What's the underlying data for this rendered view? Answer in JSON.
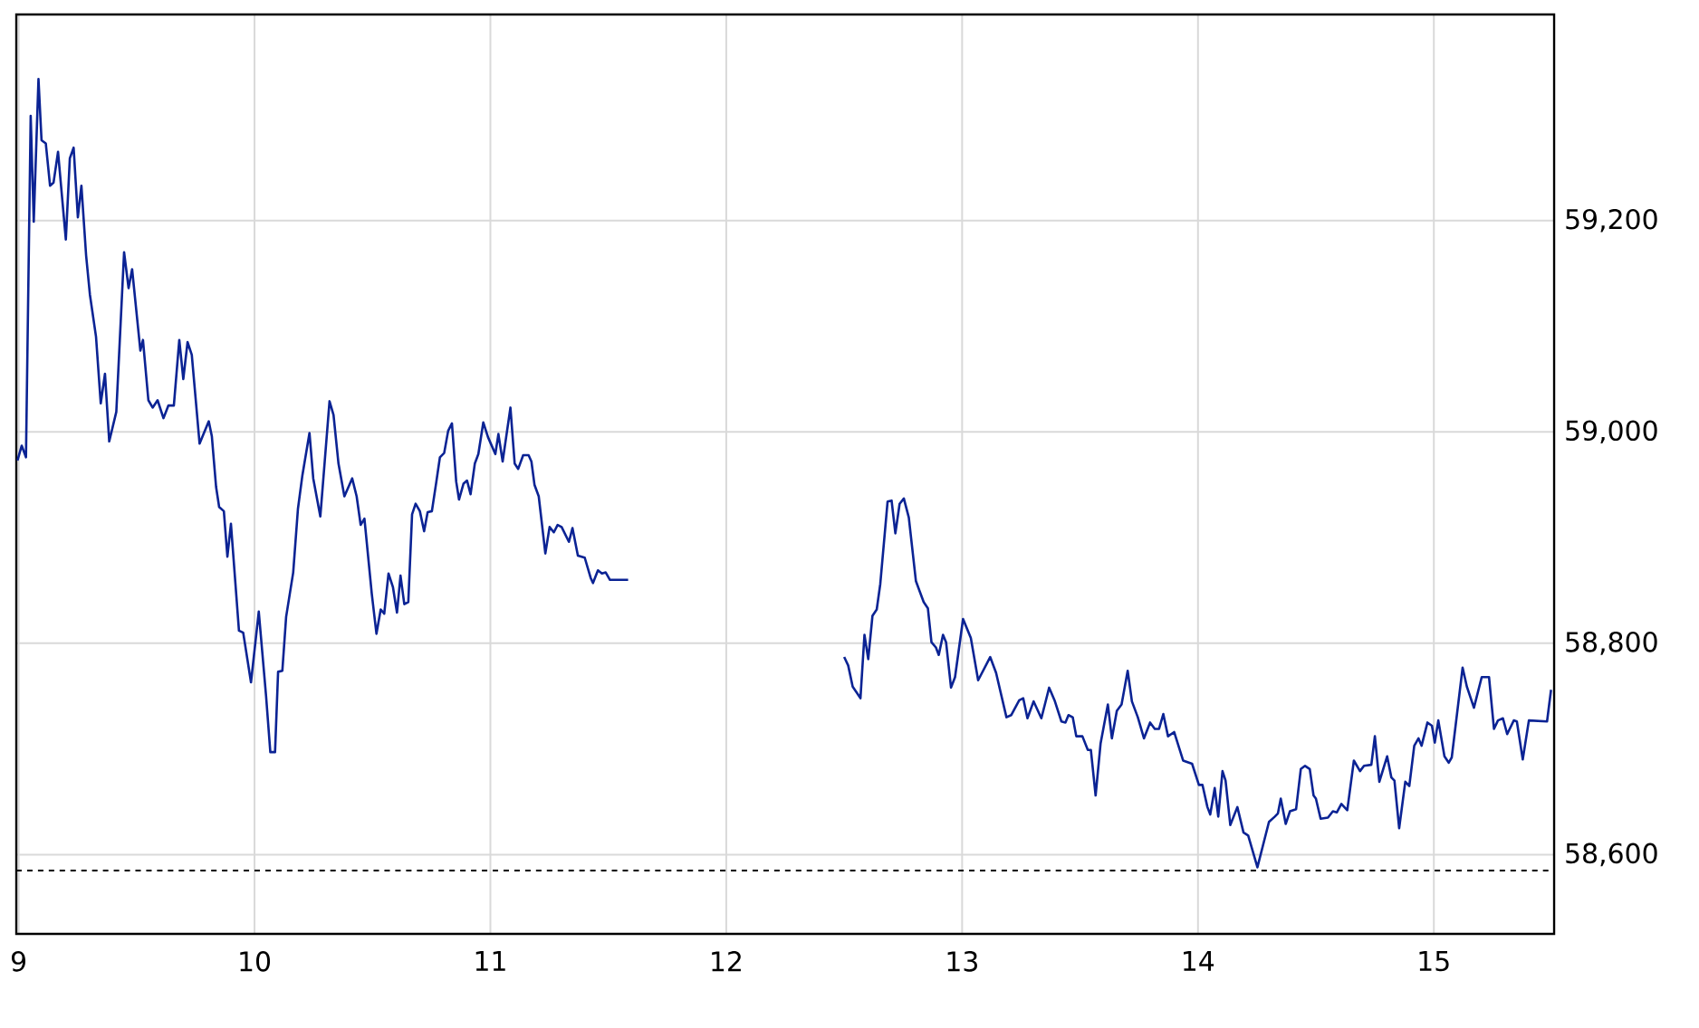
{
  "chart_data": {
    "type": "line",
    "xlim": [
      8.99,
      15.51
    ],
    "ylim": [
      58525,
      59395
    ],
    "xticks": [
      9,
      10,
      11,
      12,
      13,
      14,
      15
    ],
    "yticks": [
      {
        "value": 58600,
        "label": "58,600"
      },
      {
        "value": 58800,
        "label": "58,800"
      },
      {
        "value": 59000,
        "label": "59,000"
      },
      {
        "value": 59200,
        "label": "59,200"
      }
    ],
    "grid": true,
    "line_style": "solid",
    "ref_lines": [
      {
        "axis": "y",
        "value": 58585,
        "color": "#000000",
        "line_style": "dashed"
      }
    ],
    "series": [
      {
        "color": "#0b2394",
        "x": [
          8.995,
          9.013,
          9.031,
          9.051,
          9.064,
          9.084,
          9.097,
          9.115,
          9.133,
          9.148,
          9.167,
          9.2,
          9.217,
          9.233,
          9.251,
          9.266,
          9.286,
          9.302,
          9.328,
          9.348,
          9.366,
          9.384,
          9.414,
          9.447,
          9.466,
          9.481,
          9.516,
          9.527,
          9.55,
          9.568,
          9.589,
          9.614,
          9.635,
          9.658,
          9.681,
          9.698,
          9.716,
          9.734,
          9.767,
          9.806,
          9.819,
          9.837,
          9.85,
          9.87,
          9.885,
          9.9,
          9.934,
          9.952,
          9.985,
          10.018,
          10.049,
          10.067,
          10.087,
          10.1,
          10.118,
          10.134,
          10.164,
          10.184,
          10.203,
          10.233,
          10.249,
          10.279,
          10.318,
          10.335,
          10.356,
          10.381,
          10.414,
          10.433,
          10.45,
          10.466,
          10.497,
          10.517,
          10.535,
          10.55,
          10.568,
          10.587,
          10.604,
          10.619,
          10.635,
          10.652,
          10.668,
          10.683,
          10.701,
          10.719,
          10.734,
          10.752,
          10.771,
          10.786,
          10.804,
          10.821,
          10.837,
          10.855,
          10.867,
          10.886,
          10.901,
          10.916,
          10.934,
          10.949,
          10.97,
          10.99,
          11.021,
          11.034,
          11.052,
          11.085,
          11.103,
          11.118,
          11.139,
          11.162,
          11.174,
          11.187,
          11.205,
          11.233,
          11.251,
          11.269,
          11.285,
          11.302,
          11.333,
          11.348,
          11.371,
          11.4,
          11.425,
          11.435,
          11.456,
          11.473,
          11.489,
          11.507,
          11.584,
          12.0,
          12.5,
          12.517,
          12.536,
          12.569,
          12.586,
          12.602,
          12.62,
          12.638,
          12.653,
          12.684,
          12.701,
          12.717,
          12.735,
          12.753,
          12.774,
          12.804,
          12.837,
          12.855,
          12.87,
          12.889,
          12.901,
          12.919,
          12.932,
          12.953,
          12.97,
          13.004,
          13.037,
          13.068,
          13.119,
          13.144,
          13.188,
          13.208,
          13.242,
          13.259,
          13.277,
          13.303,
          13.336,
          13.369,
          13.392,
          13.421,
          13.438,
          13.451,
          13.469,
          13.484,
          13.51,
          13.533,
          13.546,
          13.566,
          13.587,
          13.618,
          13.635,
          13.656,
          13.676,
          13.702,
          13.72,
          13.745,
          13.771,
          13.797,
          13.817,
          13.835,
          13.853,
          13.873,
          13.899,
          13.937,
          13.975,
          14.004,
          14.019,
          14.04,
          14.052,
          14.071,
          14.086,
          14.104,
          14.117,
          14.137,
          14.167,
          14.193,
          14.213,
          14.252,
          14.301,
          14.326,
          14.339,
          14.351,
          14.372,
          14.39,
          14.416,
          14.436,
          14.454,
          14.474,
          14.49,
          14.5,
          14.52,
          14.551,
          14.572,
          14.589,
          14.608,
          14.633,
          14.661,
          14.687,
          14.704,
          14.735,
          14.75,
          14.769,
          14.802,
          14.82,
          14.833,
          14.853,
          14.879,
          14.896,
          14.917,
          14.935,
          14.948,
          14.973,
          14.992,
          15.004,
          15.019,
          15.045,
          15.063,
          15.076,
          15.122,
          15.14,
          15.17,
          15.203,
          15.234,
          15.255,
          15.272,
          15.293,
          15.311,
          15.339,
          15.352,
          15.377,
          15.403,
          15.48,
          15.497
        ],
        "values": [
          58973,
          58987,
          58976,
          59299,
          59199,
          59334,
          59276,
          59273,
          59233,
          59236,
          59265,
          59182,
          59259,
          59269,
          59203,
          59233,
          59167,
          59130,
          59090,
          59027,
          59055,
          58991,
          59019,
          59170,
          59136,
          59154,
          59077,
          59087,
          59030,
          59023,
          59030,
          59013,
          59025,
          59025,
          59087,
          59050,
          59085,
          59073,
          58989,
          59010,
          58996,
          58948,
          58929,
          58925,
          58882,
          58913,
          58812,
          58810,
          58763,
          58830,
          58750,
          58697,
          58697,
          58773,
          58774,
          58825,
          58867,
          58927,
          58959,
          58999,
          58956,
          58920,
          59029,
          59016,
          58970,
          58939,
          58956,
          58939,
          58912,
          58918,
          58847,
          58809,
          58832,
          58828,
          58866,
          58853,
          58829,
          58864,
          58837,
          58839,
          58922,
          58932,
          58925,
          58906,
          58924,
          58925,
          58953,
          58976,
          58980,
          59001,
          59008,
          58953,
          58936,
          58951,
          58954,
          58941,
          58970,
          58979,
          59009,
          58995,
          58979,
          58998,
          58972,
          59023,
          58970,
          58965,
          58978,
          58978,
          58972,
          58950,
          58939,
          58885,
          58910,
          58905,
          58912,
          58910,
          58896,
          58909,
          58883,
          58881,
          58862,
          58857,
          58869,
          58866,
          58867,
          58860,
          58860,
          null,
          58787,
          58779,
          58759,
          58748,
          58808,
          58785,
          58826,
          58832,
          58856,
          58934,
          58935,
          58904,
          58932,
          58937,
          58919,
          58859,
          58839,
          58833,
          58801,
          58796,
          58789,
          58808,
          58801,
          58758,
          58768,
          58823,
          58805,
          58765,
          58787,
          58772,
          58730,
          58732,
          58746,
          58748,
          58729,
          58745,
          58729,
          58758,
          58746,
          58726,
          58725,
          58732,
          58730,
          58712,
          58712,
          58699,
          58699,
          58656,
          58705,
          58742,
          58710,
          58736,
          58742,
          58774,
          58745,
          58730,
          58710,
          58725,
          58719,
          58719,
          58733,
          58712,
          58716,
          58689,
          58686,
          58666,
          58666,
          58645,
          58638,
          58663,
          58636,
          58679,
          58670,
          58628,
          58645,
          58621,
          58618,
          58588,
          58631,
          58636,
          58639,
          58653,
          58629,
          58641,
          58643,
          58681,
          58684,
          58681,
          58656,
          58653,
          58634,
          58635,
          58641,
          58640,
          58648,
          58642,
          58689,
          58679,
          58684,
          58685,
          58712,
          58669,
          58693,
          58673,
          58670,
          58625,
          58669,
          58665,
          58703,
          58710,
          58703,
          58725,
          58722,
          58706,
          58727,
          58693,
          58687,
          58692,
          58777,
          58759,
          58739,
          58768,
          58768,
          58719,
          58727,
          58729,
          58714,
          58727,
          58726,
          58690,
          58727,
          58726,
          58756
        ]
      }
    ]
  }
}
